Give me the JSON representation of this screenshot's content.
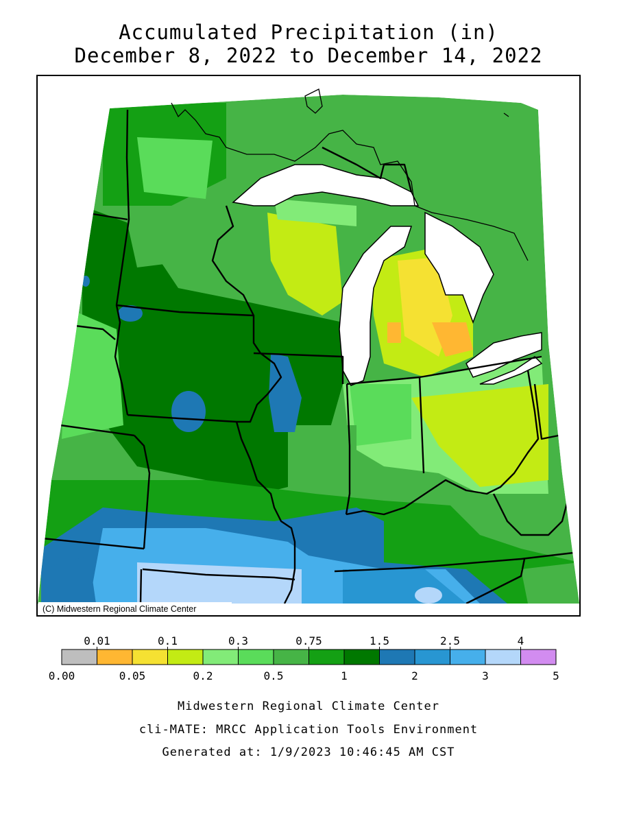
{
  "title_line1": "Accumulated Precipitation (in)",
  "title_line2": "December 8, 2022 to December 14, 2022",
  "copyright": "(C) Midwestern Regional Climate Center",
  "legend": {
    "top_labels": [
      "0.01",
      "0.1",
      "0.3",
      "0.75",
      "1.5",
      "2.5",
      "4"
    ],
    "bottom_labels": [
      "0.00",
      "0.05",
      "0.2",
      "0.5",
      "1",
      "2",
      "3",
      "5"
    ],
    "colors": [
      "#bebebe",
      "#ffb732",
      "#f5e132",
      "#c3eb14",
      "#82eb78",
      "#5adc5a",
      "#46b446",
      "#14a014",
      "#007800",
      "#1e78b4",
      "#2896d2",
      "#46afeb",
      "#b4d7fa",
      "#d28cf0"
    ]
  },
  "footer": {
    "org": "Midwestern Regional Climate Center",
    "tool": "cli-MATE: MRCC Application Tools Environment",
    "generated": "Generated at: 1/9/2023 10:46:45 AM CST"
  }
}
